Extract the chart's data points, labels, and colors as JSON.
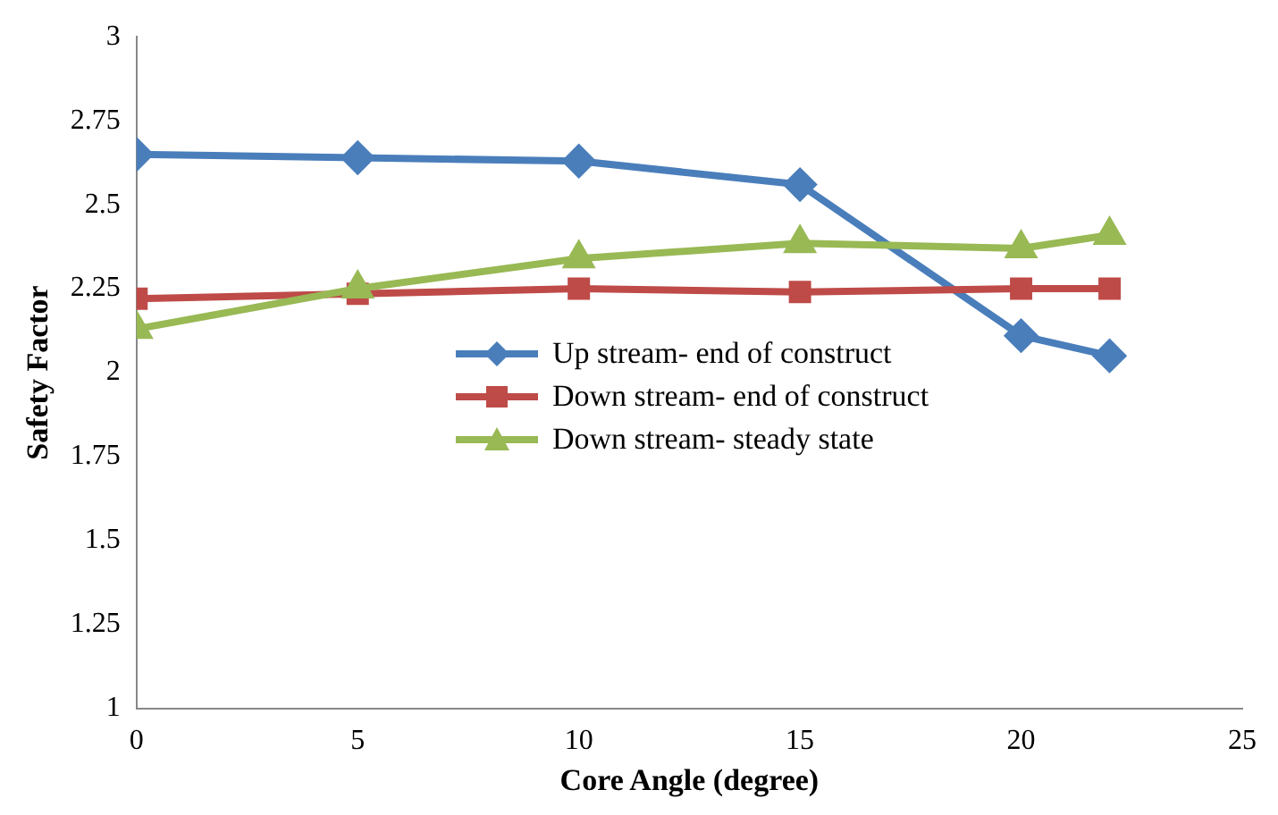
{
  "chart_data": {
    "type": "line",
    "xlabel": "Core Angle (degree)",
    "ylabel": "Safety Factor",
    "x": [
      0,
      5,
      10,
      15,
      20,
      22
    ],
    "series": [
      {
        "name": "Up stream- end of construct",
        "color": "#4a7ebb",
        "marker": "diamond",
        "values": [
          2.65,
          2.64,
          2.63,
          2.56,
          2.11,
          2.05
        ]
      },
      {
        "name": "Down stream- end of construct",
        "color": "#be4b48",
        "marker": "square",
        "values": [
          2.22,
          2.235,
          2.25,
          2.24,
          2.25,
          2.25
        ]
      },
      {
        "name": "Down stream- steady state",
        "color": "#98b954",
        "marker": "triangle",
        "values": [
          2.13,
          2.25,
          2.34,
          2.385,
          2.37,
          2.41
        ]
      }
    ],
    "xlim": [
      0,
      25
    ],
    "xticks": [
      0,
      5,
      10,
      15,
      20,
      25
    ],
    "ylim": [
      1,
      3
    ],
    "yticks": [
      1,
      1.25,
      1.5,
      1.75,
      2,
      2.25,
      2.5,
      2.75,
      3
    ],
    "grid": false,
    "legend": "right"
  }
}
